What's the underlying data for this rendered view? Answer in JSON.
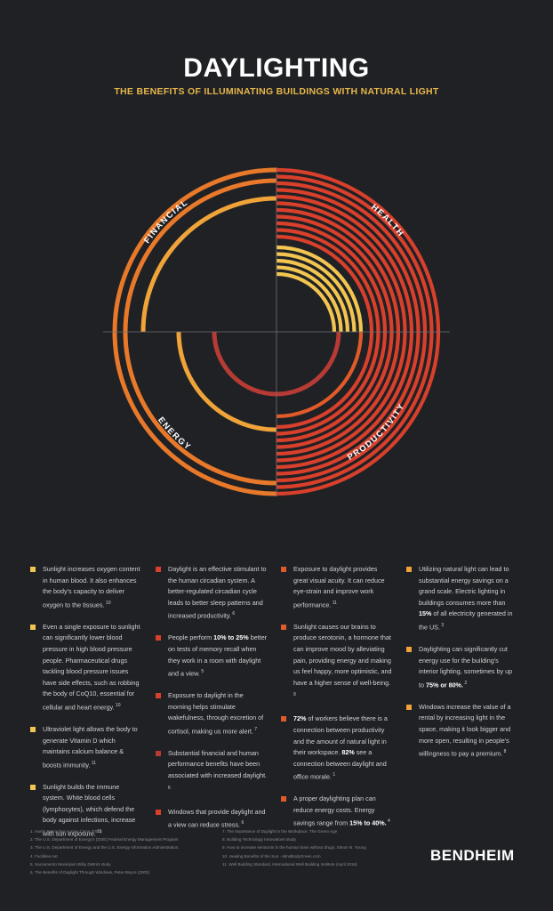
{
  "header": {
    "title": "DAYLIGHTING",
    "subtitle": "THE BENEFITS OF ILLUMINATING BUILDINGS WITH NATURAL LIGHT"
  },
  "diagram": {
    "labels": {
      "financial": "FINANCIAL",
      "health": "HEALTH",
      "energy": "ENERGY",
      "productivity": "PRODUCTIVITY"
    },
    "ring_counts": {
      "financial": 3,
      "health": 14,
      "energy": 3,
      "productivity": 13
    },
    "colors": {
      "red": "#d8402c",
      "red_orange": "#e05a2a",
      "orange": "#e9792a",
      "amber": "#f0a338",
      "yellow": "#f2c551",
      "dark_red": "#b73b35"
    }
  },
  "columns": [
    [
      {
        "color": "#f2c551",
        "text": "Sunlight increases oxygen content in human blood. It also enhances the body’s capacity to deliver oxygen to the tissues.",
        "ref": "10"
      },
      {
        "color": "#f2c551",
        "text": "Even a single exposure to sunlight can significantly lower blood pressure in high blood pressure people. Pharmaceutical drugs tackling blood pressure issues have side effects, such as robbing the body of CoQ10, essential for cellular and heart energy.",
        "ref": "10"
      },
      {
        "color": "#f2c551",
        "text": "Ultraviolet light allows the body to generate Vitamin D which maintains calcium balance & boosts immunity.",
        "ref": "11"
      },
      {
        "color": "#f2c551",
        "text": "Sunlight builds the immune system. White blood cells (lymphocytes), which defend the body against infections, increase with sun exposure.",
        "ref": "11"
      }
    ],
    [
      {
        "color": "#d8402c",
        "text": "Daylight is an effective stimulant to the human circadian system. A better-regulated circadian cycle leads to better sleep patterns and increased productivity.",
        "ref": "6"
      },
      {
        "color": "#d8402c",
        "pre": "People perform ",
        "bold": "10% to 25%",
        "post": " better on tests of memory recall when they work in a room with daylight and a view.",
        "ref": "5"
      },
      {
        "color": "#d8402c",
        "text": "Exposure to daylight in the morning helps stimulate wakefulness, through excretion of cortisol, making us more alert.",
        "ref": "7"
      },
      {
        "color": "#b73b35",
        "text": "Substantial financial and human performance benefits have been associated with increased daylight.",
        "ref": "6"
      },
      {
        "color": "#d8402c",
        "text": "Windows that provide daylight and a view can reduce stress.",
        "ref": "6"
      }
    ],
    [
      {
        "color": "#e05a2a",
        "text": "Exposure to daylight provides great visual acuity. It can reduce eye-strain and improve work performance.",
        "ref": "11"
      },
      {
        "color": "#e05a2a",
        "text": "Sunlight causes our brains to produce serotonin, a hormone that can improve mood by alleviating pain, providing energy and making us feel happy, more optimistic, and have a higher sense of well-being.",
        "ref": "9"
      },
      {
        "color": "#e05a2a",
        "pre": "",
        "bold": "72%",
        "post": " of workers believe there is a connection between productivity and the amount of natural light in their workspace. ",
        "bold2": "82%",
        "post2": " see a connection between daylight and office morale.",
        "ref": "1"
      },
      {
        "color": "#e05a2a",
        "pre": "A proper daylighting plan can reduce energy costs. Energy savings range from ",
        "bold": "15% to 40%.",
        "post": "",
        "ref": "4"
      }
    ],
    [
      {
        "color": "#f0a338",
        "pre": "Utilizing natural light can lead to substantial energy savings on a grand scale. Electric lighting in buildings consumes more than ",
        "bold": "15%",
        "post": " of all electricity generated in the US.",
        "ref": "3"
      },
      {
        "color": "#f0a338",
        "pre": "Daylighting can significantly cut energy use for the building’s interior lighting, sometimes by up to ",
        "bold": "75% or 80%.",
        "post": "",
        "ref": "2"
      },
      {
        "color": "#f0a338",
        "text": "Windows increase the value of a rental by increasing light in the space, making it look bigger and more open, resulting in people’s willingness to pay a premium.",
        "ref": "8"
      }
    ]
  ],
  "footnotes_left": [
    "1. Harris Interactive survey (June 2003)",
    "2. The U.S. Department of Energy’s (DOE) Federal Energy Management Program",
    "3. The U.S. Department of Energy and the U.S. Energy Information Administration.",
    "4. Facilities.net",
    "5. Sacramento Municipal Utility District study",
    "6. The Benefits of Daylight Through Windows, Peter Boyce (2003)"
  ],
  "footnotes_right": [
    "7. The Importance of Daylight in the Workplace, The Green Age",
    "8. Building Technology Innovations study",
    "9. How to increase serotonin in the human brain without drugs, Simon N. Young",
    "10. Healing Benefits of the Sun - MindBodyGreen.com",
    "11. Well Building Standard, International Well Building Institute (April 2016)"
  ],
  "brand": {
    "name": "BENDHEIM"
  }
}
